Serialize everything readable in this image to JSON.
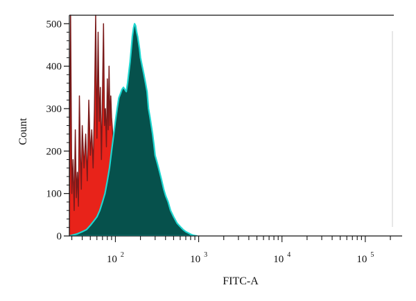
{
  "chart_data": {
    "type": "area",
    "xlabel": "FITC-A",
    "ylabel": "Count",
    "x_scale": "log",
    "xlim": [
      28,
      220000
    ],
    "ylim": [
      0,
      520
    ],
    "y_ticks": [
      0,
      100,
      200,
      300,
      400,
      500
    ],
    "x_tick_labels": [
      {
        "value": 100,
        "base": "10",
        "exp": "2"
      },
      {
        "value": 1000,
        "base": "10",
        "exp": "3"
      },
      {
        "value": 10000,
        "base": "10",
        "exp": "4"
      },
      {
        "value": 100000,
        "base": "10",
        "exp": "5"
      }
    ],
    "series": [
      {
        "color": "#e8231a",
        "edge_color": "#7a1a1a",
        "x": [
          28,
          29,
          30,
          31,
          32,
          33,
          34,
          35,
          36,
          37,
          38,
          39,
          40,
          42,
          44,
          46,
          48,
          50,
          52,
          54,
          56,
          58,
          60,
          62,
          64,
          66,
          68,
          70,
          72,
          74,
          76,
          78,
          80,
          82,
          84,
          86,
          88,
          90,
          93,
          96,
          100,
          104,
          108,
          112,
          116,
          120,
          125,
          130,
          135,
          140,
          150,
          160,
          170
        ],
        "y": [
          30,
          520,
          100,
          180,
          60,
          250,
          90,
          150,
          70,
          330,
          200,
          110,
          260,
          160,
          240,
          130,
          320,
          190,
          250,
          160,
          300,
          520,
          230,
          480,
          270,
          350,
          180,
          330,
          500,
          260,
          300,
          210,
          370,
          250,
          400,
          260,
          330,
          280,
          240,
          200,
          160,
          130,
          100,
          80,
          60,
          45,
          35,
          25,
          18,
          12,
          6,
          3,
          0
        ]
      },
      {
        "color": "#06514c",
        "edge_color": "#1fd6d0",
        "x": [
          28,
          35,
          40,
          45,
          50,
          55,
          60,
          65,
          70,
          75,
          80,
          85,
          90,
          95,
          100,
          105,
          110,
          115,
          120,
          125,
          130,
          135,
          140,
          145,
          150,
          155,
          160,
          165,
          170,
          175,
          180,
          185,
          190,
          195,
          200,
          210,
          220,
          230,
          240,
          250,
          260,
          270,
          280,
          290,
          300,
          320,
          340,
          360,
          380,
          400,
          430,
          460,
          500,
          550,
          600,
          650,
          700,
          750,
          800,
          850,
          900,
          950
        ],
        "y": [
          0,
          5,
          10,
          15,
          25,
          35,
          45,
          60,
          80,
          100,
          130,
          160,
          200,
          235,
          270,
          300,
          325,
          335,
          345,
          350,
          345,
          340,
          360,
          385,
          410,
          440,
          470,
          490,
          500,
          495,
          480,
          470,
          455,
          440,
          420,
          400,
          380,
          360,
          340,
          300,
          280,
          260,
          240,
          215,
          190,
          170,
          150,
          130,
          110,
          95,
          80,
          60,
          45,
          30,
          22,
          15,
          10,
          7,
          4,
          2,
          1,
          0
        ]
      }
    ]
  }
}
